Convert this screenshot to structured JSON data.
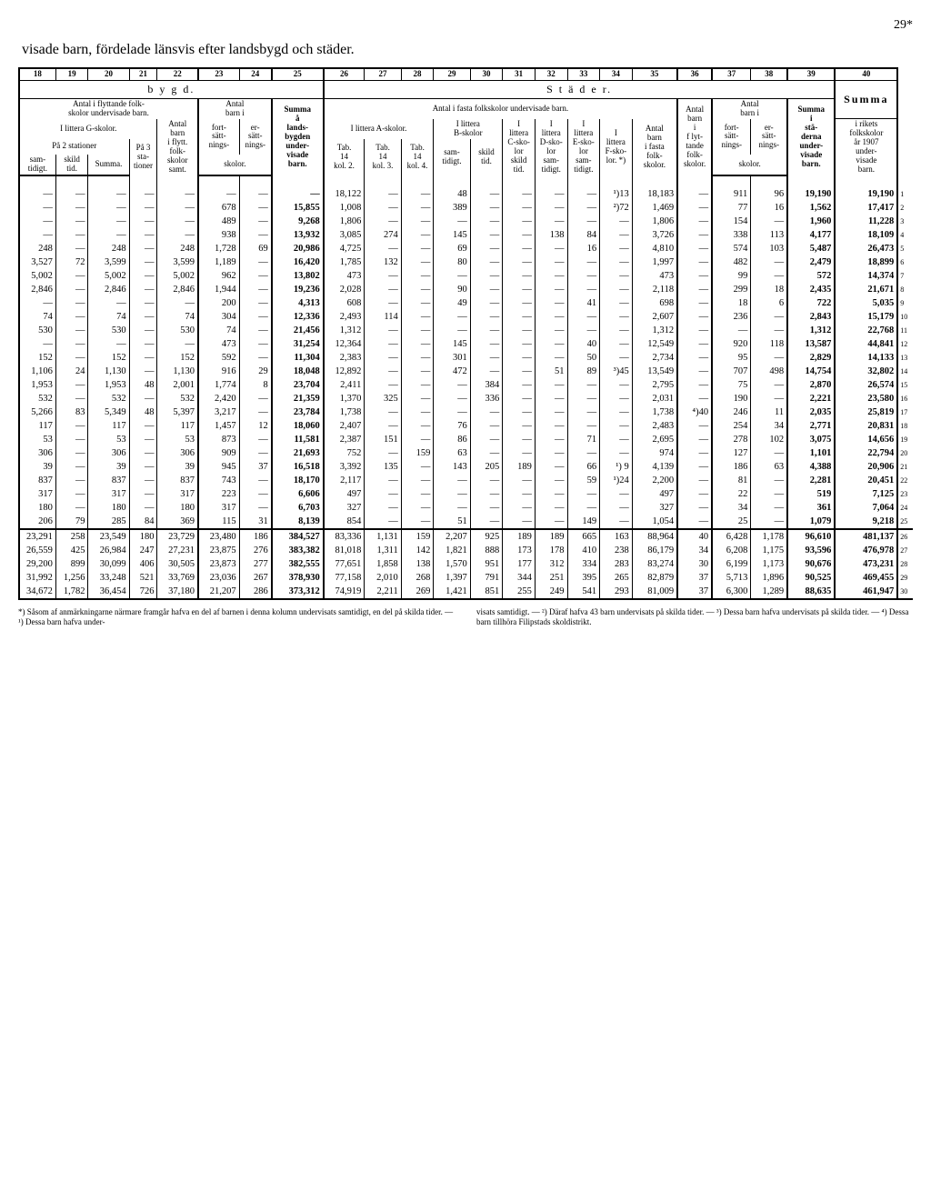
{
  "pagenum": "29*",
  "title": "visade barn, fördelade länsvis efter landsbygd och städer.",
  "colnums": [
    "18",
    "19",
    "20",
    "21",
    "22",
    "23",
    "24",
    "25",
    "26",
    "27",
    "28",
    "29",
    "30",
    "31",
    "32",
    "33",
    "34",
    "35",
    "36",
    "37",
    "38",
    "39",
    "40"
  ],
  "group_b": "b  y  g  d.",
  "group_s": "S  t  ä  d  e  r.",
  "group_sum": "Summa",
  "h": {
    "antal_flytt": "Antal i flyttande folk-\nskolor undervisade barn.",
    "antal_barn_i": "Antal\nbarn i",
    "summa_a": "Summa\nå\nlands-\nbygden\nunder-\nvisade\nbarn.",
    "antal_fasta": "Antal i fasta folkskolor undervisade barn.",
    "antal_barn": "Antal\nbarn\ni\nf lyt-\ntande\nfolk-\nskolor.",
    "antal_barn_i_2": "Antal\nbarn i",
    "summa_i": "Summa\ni\nstä-\nderna\nunder-\nvisade\nbarn.",
    "i_rikets": "i rikets\nfolkskolor\når 1907\nunder-\nvisade\nbarn.",
    "litt_g": "I littera G-skolor.",
    "antal_barn_flytt": "Antal\nbarn\ni flytt.\nfolk-\nskolor\nsamt.",
    "fort": "fort-\nsätt-\nnings-",
    "er": "er-\nsätt-\nnings-",
    "skolor": "skolor.",
    "litt_a": "I littera A-skolor.",
    "litt_b": "I littera\nB-skolor",
    "c": "I\nlittera\nC-sko-\nlor\nskild\ntid.",
    "d": "I\nlittera\nD-sko-\nlor\nsam-\ntidigt.",
    "e": "I\nlittera\nE-sko-\nlor\nsam-\ntidigt.",
    "f": "I\nlittera\nF-sko-\nlor. *)",
    "antal_i_fasta": "Antal\nbarn\ni fasta\nfolk-\nskolor.",
    "fort2": "fort-\nsätt-\nnings-",
    "er2": "er-\nsätt-\nnings-",
    "skolor2": "skolor.",
    "pa2": "På 2 stationer",
    "pa3": "På 3\nsta-\ntioner",
    "sam": "sam-\ntidigt.",
    "skild": "skild\ntid.",
    "summa": "Summa.",
    "tab2": "Tab.\n14\nkol. 2.",
    "tab3": "Tab.\n14\nkol. 3.",
    "tab4": "Tab.\n14\nkol. 4."
  },
  "rows": [
    [
      "—",
      "—",
      "—",
      "—",
      "—",
      "—",
      "—",
      "—",
      "18,122",
      "—",
      "—",
      "48",
      "—",
      "—",
      "—",
      "—",
      "¹)13",
      "18,183",
      "—",
      "911",
      "96",
      "19,190",
      "19,190",
      "1"
    ],
    [
      "—",
      "—",
      "—",
      "—",
      "—",
      "678",
      "—",
      "15,855",
      "1,008",
      "—",
      "—",
      "389",
      "—",
      "—",
      "—",
      "—",
      "²)72",
      "1,469",
      "—",
      "77",
      "16",
      "1,562",
      "17,417",
      "2"
    ],
    [
      "—",
      "—",
      "—",
      "—",
      "—",
      "489",
      "—",
      "9,268",
      "1,806",
      "—",
      "—",
      "—",
      "—",
      "—",
      "—",
      "—",
      "—",
      "1,806",
      "—",
      "154",
      "—",
      "1,960",
      "11,228",
      "3"
    ],
    [
      "—",
      "—",
      "—",
      "—",
      "—",
      "938",
      "—",
      "13,932",
      "3,085",
      "274",
      "—",
      "145",
      "—",
      "—",
      "138",
      "84",
      "—",
      "3,726",
      "—",
      "338",
      "113",
      "4,177",
      "18,109",
      "4"
    ],
    [
      "248",
      "—",
      "248",
      "—",
      "248",
      "1,728",
      "69",
      "20,986",
      "4,725",
      "—",
      "—",
      "69",
      "—",
      "—",
      "—",
      "16",
      "—",
      "4,810",
      "—",
      "574",
      "103",
      "5,487",
      "26,473",
      "5"
    ],
    [
      "3,527",
      "72",
      "3,599",
      "—",
      "3,599",
      "1,189",
      "—",
      "16,420",
      "1,785",
      "132",
      "—",
      "80",
      "—",
      "—",
      "—",
      "—",
      "—",
      "1,997",
      "—",
      "482",
      "—",
      "2,479",
      "18,899",
      "6"
    ],
    [
      "5,002",
      "—",
      "5,002",
      "—",
      "5,002",
      "962",
      "—",
      "13,802",
      "473",
      "—",
      "—",
      "—",
      "—",
      "—",
      "—",
      "—",
      "—",
      "473",
      "—",
      "99",
      "—",
      "572",
      "14,374",
      "7"
    ],
    [
      "2,846",
      "—",
      "2,846",
      "—",
      "2,846",
      "1,944",
      "—",
      "19,236",
      "2,028",
      "—",
      "—",
      "90",
      "—",
      "—",
      "—",
      "—",
      "—",
      "2,118",
      "—",
      "299",
      "18",
      "2,435",
      "21,671",
      "8"
    ],
    [
      "—",
      "—",
      "—",
      "—",
      "—",
      "200",
      "—",
      "4,313",
      "608",
      "—",
      "—",
      "49",
      "—",
      "—",
      "—",
      "41",
      "—",
      "698",
      "—",
      "18",
      "6",
      "722",
      "5,035",
      "9"
    ],
    [
      "74",
      "—",
      "74",
      "—",
      "74",
      "304",
      "—",
      "12,336",
      "2,493",
      "114",
      "—",
      "—",
      "—",
      "—",
      "—",
      "—",
      "—",
      "2,607",
      "—",
      "236",
      "—",
      "2,843",
      "15,179",
      "10"
    ],
    [
      "530",
      "—",
      "530",
      "—",
      "530",
      "74",
      "—",
      "21,456",
      "1,312",
      "—",
      "—",
      "—",
      "—",
      "—",
      "—",
      "—",
      "—",
      "1,312",
      "—",
      "—",
      "—",
      "1,312",
      "22,768",
      "11"
    ],
    [
      "—",
      "—",
      "—",
      "—",
      "—",
      "473",
      "—",
      "31,254",
      "12,364",
      "—",
      "—",
      "145",
      "—",
      "—",
      "—",
      "40",
      "—",
      "12,549",
      "—",
      "920",
      "118",
      "13,587",
      "44,841",
      "12"
    ],
    [
      "152",
      "—",
      "152",
      "—",
      "152",
      "592",
      "—",
      "11,304",
      "2,383",
      "—",
      "—",
      "301",
      "—",
      "—",
      "—",
      "50",
      "—",
      "2,734",
      "—",
      "95",
      "—",
      "2,829",
      "14,133",
      "13"
    ],
    [
      "1,106",
      "24",
      "1,130",
      "—",
      "1,130",
      "916",
      "29",
      "18,048",
      "12,892",
      "—",
      "—",
      "472",
      "—",
      "—",
      "51",
      "89",
      "³)45",
      "13,549",
      "—",
      "707",
      "498",
      "14,754",
      "32,802",
      "14"
    ],
    [
      "1,953",
      "—",
      "1,953",
      "48",
      "2,001",
      "1,774",
      "8",
      "23,704",
      "2,411",
      "—",
      "—",
      "—",
      "384",
      "—",
      "—",
      "—",
      "—",
      "2,795",
      "—",
      "75",
      "—",
      "2,870",
      "26,574",
      "15"
    ],
    [
      "532",
      "—",
      "532",
      "—",
      "532",
      "2,420",
      "—",
      "21,359",
      "1,370",
      "325",
      "—",
      "—",
      "336",
      "—",
      "—",
      "—",
      "—",
      "2,031",
      "—",
      "190",
      "—",
      "2,221",
      "23,580",
      "16"
    ],
    [
      "5,266",
      "83",
      "5,349",
      "48",
      "5,397",
      "3,217",
      "—",
      "23,784",
      "1,738",
      "—",
      "—",
      "—",
      "—",
      "—",
      "—",
      "—",
      "—",
      "1,738",
      "⁴)40",
      "246",
      "11",
      "2,035",
      "25,819",
      "17"
    ],
    [
      "117",
      "—",
      "117",
      "—",
      "117",
      "1,457",
      "12",
      "18,060",
      "2,407",
      "—",
      "—",
      "76",
      "—",
      "—",
      "—",
      "—",
      "—",
      "2,483",
      "—",
      "254",
      "34",
      "2,771",
      "20,831",
      "18"
    ],
    [
      "53",
      "—",
      "53",
      "—",
      "53",
      "873",
      "—",
      "11,581",
      "2,387",
      "151",
      "—",
      "86",
      "—",
      "—",
      "—",
      "71",
      "—",
      "2,695",
      "—",
      "278",
      "102",
      "3,075",
      "14,656",
      "19"
    ],
    [
      "306",
      "—",
      "306",
      "—",
      "306",
      "909",
      "—",
      "21,693",
      "752",
      "—",
      "159",
      "63",
      "—",
      "—",
      "—",
      "—",
      "—",
      "974",
      "—",
      "127",
      "—",
      "1,101",
      "22,794",
      "20"
    ],
    [
      "39",
      "—",
      "39",
      "—",
      "39",
      "945",
      "37",
      "16,518",
      "3,392",
      "135",
      "—",
      "143",
      "205",
      "189",
      "—",
      "66",
      "¹) 9",
      "4,139",
      "—",
      "186",
      "63",
      "4,388",
      "20,906",
      "21"
    ],
    [
      "837",
      "—",
      "837",
      "—",
      "837",
      "743",
      "—",
      "18,170",
      "2,117",
      "—",
      "—",
      "—",
      "—",
      "—",
      "—",
      "59",
      "¹)24",
      "2,200",
      "—",
      "81",
      "—",
      "2,281",
      "20,451",
      "22"
    ],
    [
      "317",
      "—",
      "317",
      "—",
      "317",
      "223",
      "—",
      "6,606",
      "497",
      "—",
      "—",
      "—",
      "—",
      "—",
      "—",
      "—",
      "—",
      "497",
      "—",
      "22",
      "—",
      "519",
      "7,125",
      "23"
    ],
    [
      "180",
      "—",
      "180",
      "—",
      "180",
      "317",
      "—",
      "6,703",
      "327",
      "—",
      "—",
      "—",
      "—",
      "—",
      "—",
      "—",
      "—",
      "327",
      "—",
      "34",
      "—",
      "361",
      "7,064",
      "24"
    ],
    [
      "206",
      "79",
      "285",
      "84",
      "369",
      "115",
      "31",
      "8,139",
      "854",
      "—",
      "—",
      "51",
      "—",
      "—",
      "—",
      "149",
      "—",
      "1,054",
      "—",
      "25",
      "—",
      "1,079",
      "9,218",
      "25"
    ],
    [
      "23,291",
      "258",
      "23,549",
      "180",
      "23,729",
      "23,480",
      "186",
      "384,527",
      "83,336",
      "1,131",
      "159",
      "2,207",
      "925",
      "189",
      "189",
      "665",
      "163",
      "88,964",
      "40",
      "6,428",
      "1,178",
      "96,610",
      "481,137",
      "26"
    ],
    [
      "26,559",
      "425",
      "26,984",
      "",
      "247",
      "27,231",
      "23,875",
      "276",
      "383,382",
      "81,018",
      "1,311",
      "142",
      "1,821",
      "888",
      "173",
      "178",
      "410",
      "238",
      "86,179",
      "34",
      "6,208",
      "1,175",
      "93,596",
      "476,978",
      "27"
    ],
    [
      "29,200",
      "899",
      "30,099",
      "",
      "406",
      "30,505",
      "23,873",
      "277",
      "382,555",
      "77,651",
      "1,858",
      "138",
      "1,570",
      "951",
      "177",
      "312",
      "334",
      "283",
      "83,274",
      "30",
      "6,199",
      "1,173",
      "90,676",
      "473,231",
      "28"
    ],
    [
      "31,992",
      "1,256",
      "33,248",
      "",
      "521",
      "33,769",
      "23,036",
      "267",
      "378,930",
      "77,158",
      "2,010",
      "268",
      "1,397",
      "791",
      "344",
      "251",
      "395",
      "265",
      "82,879",
      "37",
      "5,713",
      "1,896",
      "90,525",
      "469,455",
      "29"
    ],
    [
      "34,672",
      "1,782",
      "36,454",
      "",
      "726",
      "37,180",
      "21,207",
      "286",
      "373,312",
      "74,919",
      "2,211",
      "269",
      "1,421",
      "851",
      "255",
      "249",
      "541",
      "293",
      "81,009",
      "37",
      "6,300",
      "1,289",
      "88,635",
      "461,947",
      "30"
    ]
  ],
  "footnote": {
    "left": "*) Såsom af anmärkningarne närmare framgår hafva en del af barnen i denna kolumn undervisats samtidigt, en del på skilda tider. — ¹) Dessa barn hafva under-",
    "right": "visats samtidigt. — ²) Däraf hafva 43 barn undervisats på skilda tider. — ³) Dessa barn hafva undervisats på skilda tider. — ⁴) Dessa barn tillhöra Filipstads skoldistrikt."
  }
}
